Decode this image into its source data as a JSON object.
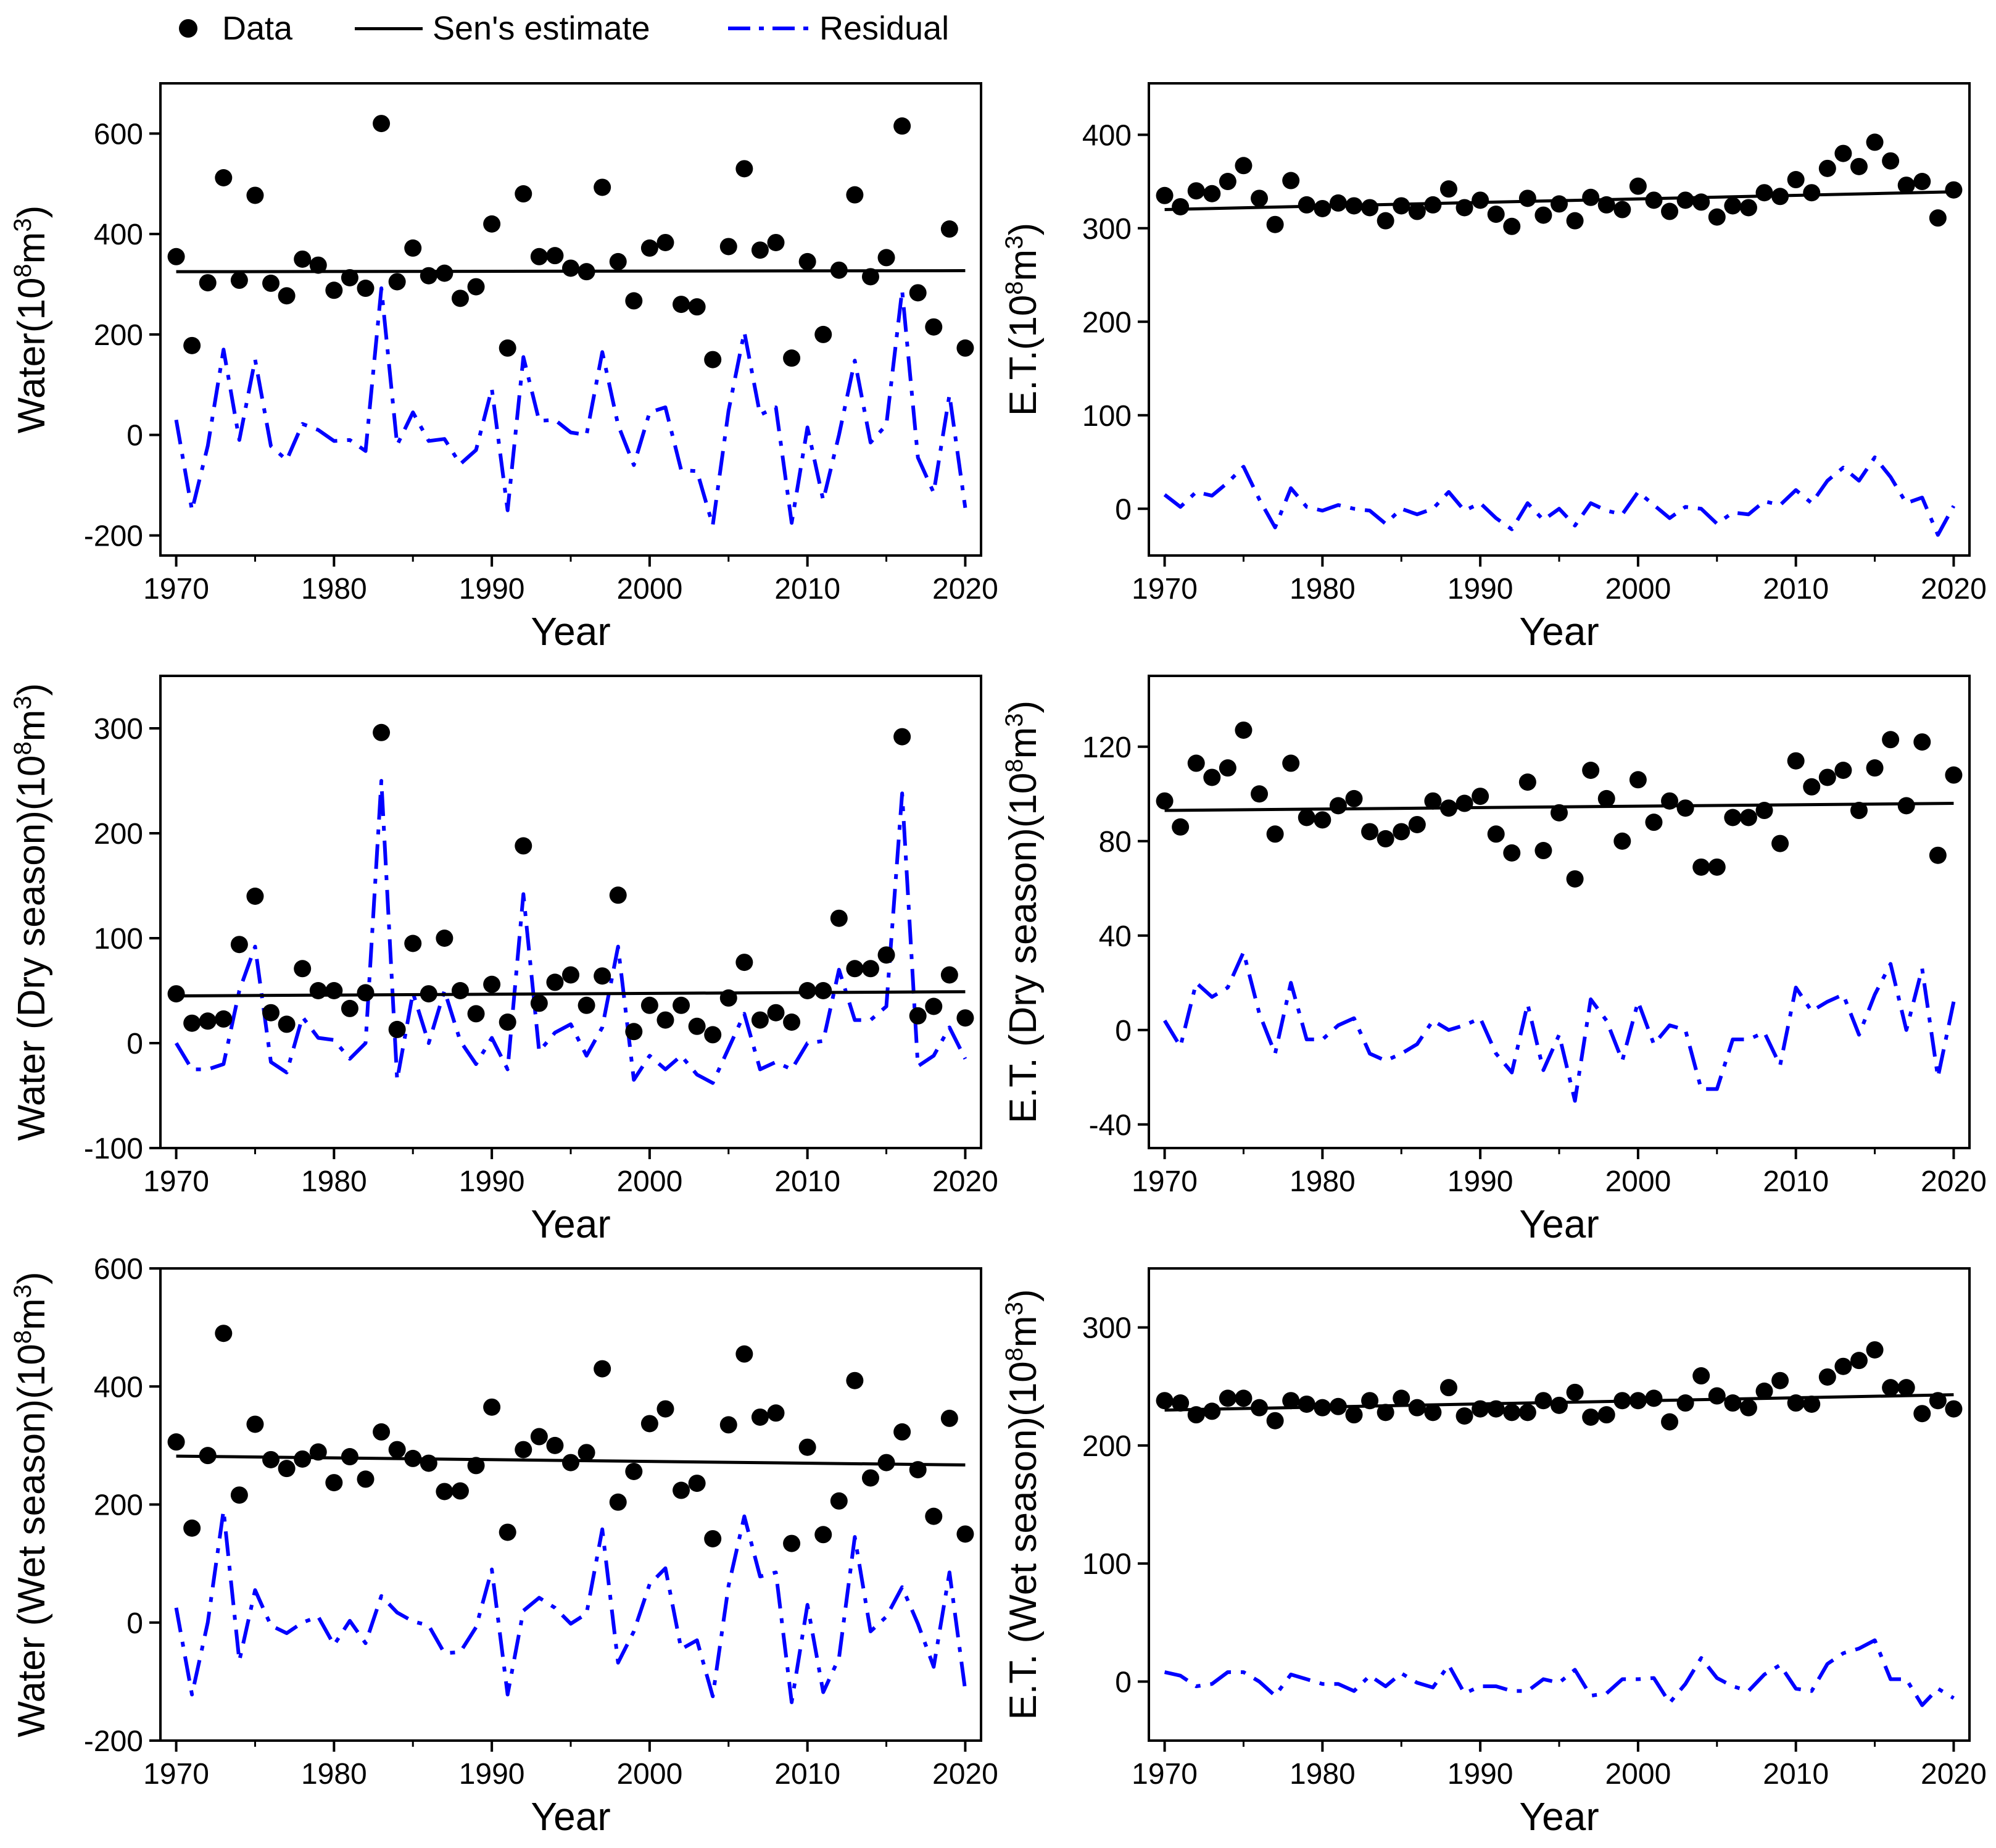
{
  "legend": {
    "data": "Data",
    "sen": "Sen's estimate",
    "residual": "Residual"
  },
  "colors": {
    "data": "#000000",
    "sen": "#000000",
    "residual": "#0000ff",
    "frame": "#000000"
  },
  "chart_data": [
    {
      "type": "scatter",
      "title": "",
      "xlabel": "Year",
      "ylabel_main": "Water(10",
      "ylabel_exp": "8",
      "ylabel_unit": "m",
      "ylabel_exp2": "3",
      "ylabel_close": ")",
      "xlim": [
        1969,
        2021
      ],
      "ylim": [
        -240,
        700
      ],
      "xticks": [
        1970,
        1980,
        1990,
        2000,
        2010,
        2020
      ],
      "yticks": [
        -200,
        0,
        200,
        400,
        600
      ],
      "x_start": 1970,
      "series": [
        {
          "name": "Data",
          "values": [
            355,
            178,
            303,
            512,
            308,
            477,
            302,
            277,
            350,
            338,
            288,
            313,
            292,
            620,
            305,
            372,
            317,
            322,
            272,
            295,
            420,
            173,
            480,
            355,
            357,
            332,
            325,
            493,
            345,
            267,
            372,
            383,
            260,
            255,
            150,
            375,
            530,
            368,
            383,
            153,
            345,
            200,
            328,
            478,
            315,
            353,
            615,
            283,
            215,
            410,
            173
          ]
        },
        {
          "name": "Sen's estimate",
          "values": [
            325,
            327
          ]
        },
        {
          "name": "Residual",
          "values": [
            30,
            -150,
            -22,
            170,
            -10,
            150,
            -22,
            -50,
            22,
            10,
            -12,
            -10,
            -32,
            292,
            -20,
            45,
            -12,
            -8,
            -58,
            -30,
            92,
            -150,
            155,
            28,
            30,
            5,
            0,
            165,
            20,
            -60,
            45,
            55,
            -70,
            -72,
            -180,
            48,
            205,
            40,
            55,
            -175,
            15,
            -130,
            0,
            148,
            -15,
            20,
            288,
            -45,
            -115,
            80,
            -145
          ]
        }
      ]
    },
    {
      "type": "scatter",
      "title": "",
      "xlabel": "Year",
      "ylabel_main": "E.T.(10",
      "ylabel_exp": "8",
      "ylabel_unit": "m",
      "ylabel_exp2": "3",
      "ylabel_close": ")",
      "xlim": [
        1969,
        2021
      ],
      "ylim": [
        -50,
        455
      ],
      "xticks": [
        1970,
        1980,
        1990,
        2000,
        2010,
        2020
      ],
      "yticks": [
        0,
        100,
        200,
        300,
        400
      ],
      "x_start": 1970,
      "series": [
        {
          "name": "Data",
          "values": [
            335,
            323,
            340,
            337,
            350,
            367,
            332,
            304,
            351,
            325,
            321,
            327,
            324,
            322,
            308,
            324,
            318,
            325,
            342,
            322,
            330,
            315,
            302,
            332,
            314,
            326,
            308,
            333,
            325,
            320,
            345,
            330,
            318,
            330,
            328,
            312,
            324,
            322,
            338,
            334,
            352,
            338,
            364,
            380,
            366,
            392,
            372,
            346,
            350,
            311,
            341
          ]
        },
        {
          "name": "Sen's estimate",
          "values": [
            320,
            339
          ]
        },
        {
          "name": "Residual",
          "values": [
            15,
            2,
            18,
            14,
            28,
            45,
            10,
            -20,
            22,
            2,
            -2,
            4,
            0,
            -2,
            -16,
            0,
            -6,
            0,
            18,
            -2,
            6,
            -10,
            -22,
            6,
            -12,
            0,
            -18,
            6,
            -2,
            -6,
            18,
            4,
            -10,
            2,
            0,
            -16,
            -4,
            -6,
            8,
            4,
            20,
            6,
            30,
            44,
            30,
            55,
            34,
            6,
            12,
            -28,
            3
          ]
        }
      ]
    },
    {
      "type": "scatter",
      "title": "",
      "xlabel": "Year",
      "ylabel_main": "Water (Dry season)(10",
      "ylabel_exp": "8",
      "ylabel_unit": "m",
      "ylabel_exp2": "3",
      "ylabel_close": ")",
      "xlim": [
        1969,
        2021
      ],
      "ylim": [
        -100,
        350
      ],
      "xticks": [
        1970,
        1980,
        1990,
        2000,
        2010,
        2020
      ],
      "yticks": [
        -100,
        0,
        100,
        200,
        300
      ],
      "x_start": 1970,
      "series": [
        {
          "name": "Data",
          "values": [
            47,
            19,
            21,
            23,
            94,
            140,
            29,
            18,
            71,
            50,
            50,
            33,
            48,
            296,
            13,
            95,
            47,
            100,
            50,
            28,
            56,
            20,
            188,
            38,
            58,
            65,
            36,
            64,
            141,
            11,
            36,
            22,
            36,
            16,
            8,
            43,
            77,
            22,
            29,
            20,
            50,
            50,
            119,
            71,
            71,
            84,
            292,
            26,
            35,
            65,
            24
          ]
        },
        {
          "name": "Sen's estimate",
          "values": [
            45,
            49
          ]
        },
        {
          "name": "Residual",
          "values": [
            0,
            -25,
            -25,
            -20,
            50,
            92,
            -18,
            -28,
            25,
            5,
            3,
            -15,
            0,
            250,
            -35,
            48,
            0,
            50,
            2,
            -20,
            5,
            -25,
            142,
            -8,
            10,
            18,
            -12,
            15,
            92,
            -35,
            -12,
            -25,
            -12,
            -30,
            -38,
            -5,
            28,
            -25,
            -18,
            -25,
            0,
            2,
            70,
            22,
            22,
            35,
            238,
            -22,
            -12,
            15,
            -15
          ]
        }
      ]
    },
    {
      "type": "scatter",
      "title": "",
      "xlabel": "Year",
      "ylabel_main": "E.T. (Dry season)(10",
      "ylabel_exp": "8",
      "ylabel_unit": "m",
      "ylabel_exp2": "3",
      "ylabel_close": ")",
      "xlim": [
        1969,
        2021
      ],
      "ylim": [
        -50,
        150
      ],
      "xticks": [
        1970,
        1980,
        1990,
        2000,
        2010,
        2020
      ],
      "yticks": [
        -40,
        0,
        40,
        80,
        120
      ],
      "x_start": 1970,
      "series": [
        {
          "name": "Data",
          "values": [
            97,
            86,
            113,
            107,
            111,
            127,
            100,
            83,
            113,
            90,
            89,
            95,
            98,
            84,
            81,
            84,
            87,
            97,
            94,
            96,
            99,
            83,
            75,
            105,
            76,
            92,
            64,
            110,
            98,
            80,
            106,
            88,
            97,
            94,
            69,
            69,
            90,
            90,
            93,
            79,
            114,
            103,
            107,
            110,
            93,
            111,
            123,
            95,
            122,
            74,
            108
          ]
        },
        {
          "name": "Sen's estimate",
          "values": [
            93,
            96
          ]
        },
        {
          "name": "Residual",
          "values": [
            4,
            -7,
            20,
            14,
            18,
            33,
            7,
            -10,
            20,
            -4,
            -4,
            2,
            5,
            -10,
            -13,
            -10,
            -6,
            4,
            0,
            2,
            5,
            -10,
            -18,
            11,
            -17,
            -2,
            -30,
            13,
            4,
            -13,
            12,
            -6,
            2,
            0,
            -25,
            -25,
            -4,
            -4,
            -1,
            -15,
            18,
            8,
            12,
            15,
            -2,
            15,
            28,
            0,
            26,
            -20,
            12
          ]
        }
      ]
    },
    {
      "type": "scatter",
      "title": "",
      "xlabel": "Year",
      "ylabel_main": "Water (Wet season)(10",
      "ylabel_exp": "8",
      "ylabel_unit": "m",
      "ylabel_exp2": "3",
      "ylabel_close": ")",
      "xlim": [
        1969,
        2021
      ],
      "ylim": [
        -200,
        600
      ],
      "xticks": [
        1970,
        1980,
        1990,
        2000,
        2010,
        2020
      ],
      "yticks": [
        -200,
        0,
        200,
        400,
        600
      ],
      "x_start": 1970,
      "series": [
        {
          "name": "Data",
          "values": [
            306,
            160,
            283,
            490,
            216,
            336,
            276,
            261,
            277,
            289,
            237,
            281,
            243,
            323,
            293,
            278,
            270,
            222,
            223,
            266,
            365,
            153,
            293,
            315,
            300,
            271,
            288,
            430,
            204,
            256,
            337,
            362,
            224,
            236,
            142,
            335,
            455,
            348,
            355,
            134,
            297,
            149,
            206,
            410,
            245,
            271,
            323,
            259,
            180,
            346,
            150
          ]
        },
        {
          "name": "Sen's estimate",
          "values": [
            282,
            267
          ]
        },
        {
          "name": "Residual",
          "values": [
            25,
            -122,
            0,
            190,
            -65,
            55,
            -5,
            -18,
            0,
            10,
            -38,
            3,
            -35,
            45,
            17,
            2,
            -5,
            -52,
            -50,
            -8,
            90,
            -122,
            20,
            42,
            25,
            -2,
            15,
            158,
            -68,
            -15,
            65,
            92,
            -45,
            -30,
            -125,
            62,
            180,
            78,
            85,
            -135,
            30,
            -118,
            -60,
            145,
            -15,
            10,
            60,
            -2,
            -75,
            85,
            -115
          ]
        }
      ]
    },
    {
      "type": "scatter",
      "title": "",
      "xlabel": "Year",
      "ylabel_main": "E.T. (Wet season)(10",
      "ylabel_exp": "8",
      "ylabel_unit": "m",
      "ylabel_exp2": "3",
      "ylabel_close": ")",
      "xlim": [
        1969,
        2021
      ],
      "ylim": [
        -50,
        350
      ],
      "xticks": [
        1970,
        1980,
        1990,
        2000,
        2010,
        2020
      ],
      "yticks": [
        0,
        100,
        200,
        300
      ],
      "x_start": 1970,
      "series": [
        {
          "name": "Data",
          "values": [
            238,
            236,
            226,
            229,
            240,
            240,
            232,
            221,
            238,
            235,
            232,
            233,
            226,
            238,
            228,
            240,
            232,
            228,
            249,
            225,
            231,
            231,
            228,
            228,
            238,
            234,
            245,
            224,
            226,
            238,
            238,
            240,
            220,
            236,
            259,
            242,
            236,
            232,
            246,
            255,
            236,
            235,
            258,
            267,
            272,
            281,
            249,
            249,
            227,
            238,
            231
          ]
        },
        {
          "name": "Sen's estimate",
          "values": [
            230,
            243
          ]
        },
        {
          "name": "Residual",
          "values": [
            8,
            5,
            -4,
            -2,
            8,
            8,
            0,
            -12,
            6,
            2,
            -2,
            -2,
            -8,
            5,
            -4,
            7,
            -1,
            -5,
            14,
            -10,
            -4,
            -4,
            -8,
            -8,
            2,
            -1,
            10,
            -12,
            -10,
            2,
            2,
            3,
            -18,
            -2,
            20,
            3,
            -4,
            -8,
            6,
            14,
            -6,
            -8,
            15,
            24,
            28,
            35,
            2,
            2,
            -20,
            -6,
            -14
          ]
        }
      ]
    }
  ]
}
